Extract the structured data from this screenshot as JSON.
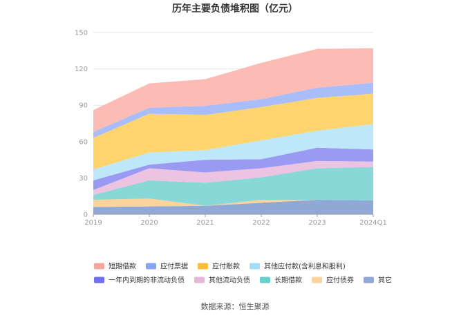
{
  "chart_data": {
    "type": "area",
    "stacked": true,
    "title": "历年主要负债堆积图（亿元）",
    "source": "数据来源：恒生聚源",
    "categories": [
      "2019",
      "2020",
      "2021",
      "2022",
      "2023",
      "2024Q1"
    ],
    "ylim": [
      0,
      150
    ],
    "yticks": [
      0,
      30,
      60,
      90,
      120,
      150
    ],
    "grid": true,
    "legend_position": "bottom",
    "series": [
      {
        "name": "其它",
        "color": "#8fa8d6",
        "values": [
          6,
          6.5,
          7,
          9.5,
          12,
          11.5
        ]
      },
      {
        "name": "应付债券",
        "color": "#fbd49b",
        "values": [
          6,
          6.5,
          0,
          2.5,
          0,
          0
        ]
      },
      {
        "name": "长期借款",
        "color": "#88d8d8",
        "values": [
          4,
          15,
          19,
          18.5,
          26,
          27.5
        ]
      },
      {
        "name": "其他流动负债",
        "color": "#ecc4e2",
        "values": [
          4,
          10,
          8.5,
          7.5,
          6,
          4.5
        ]
      },
      {
        "name": "一年内到期的非流动负债",
        "color": "#9a9af2",
        "values": [
          8,
          3,
          10.5,
          7.5,
          11,
          10
        ]
      },
      {
        "name": "其他应付款(含利息和股利)",
        "color": "#bfe7fa",
        "values": [
          9,
          10,
          8,
          15.5,
          14,
          21
        ]
      },
      {
        "name": "应付账款",
        "color": "#fed46e",
        "values": [
          26,
          32,
          29,
          27.5,
          27,
          25
        ]
      },
      {
        "name": "应付票据",
        "color": "#a9bdfb",
        "values": [
          5,
          5,
          7.5,
          6.5,
          8.5,
          9
        ]
      },
      {
        "name": "短期借款",
        "color": "#fcbcb5",
        "values": [
          18,
          20,
          22,
          30,
          32,
          28.5
        ]
      }
    ],
    "legend": [
      {
        "name": "短期借款",
        "color": "#f7a59b"
      },
      {
        "name": "应付票据",
        "color": "#86a4f8"
      },
      {
        "name": "应付账款",
        "color": "#fbbe3a"
      },
      {
        "name": "其他应付款(含利息和股利)",
        "color": "#a3def9"
      },
      {
        "name": "一年内到期的非流动负债",
        "color": "#6f6ff0"
      },
      {
        "name": "其他流动负债",
        "color": "#e7b7db"
      },
      {
        "name": "长期借款",
        "color": "#6ccfcf"
      },
      {
        "name": "应付债券",
        "color": "#fbd49b"
      },
      {
        "name": "其它",
        "color": "#8fa8d6"
      }
    ]
  }
}
